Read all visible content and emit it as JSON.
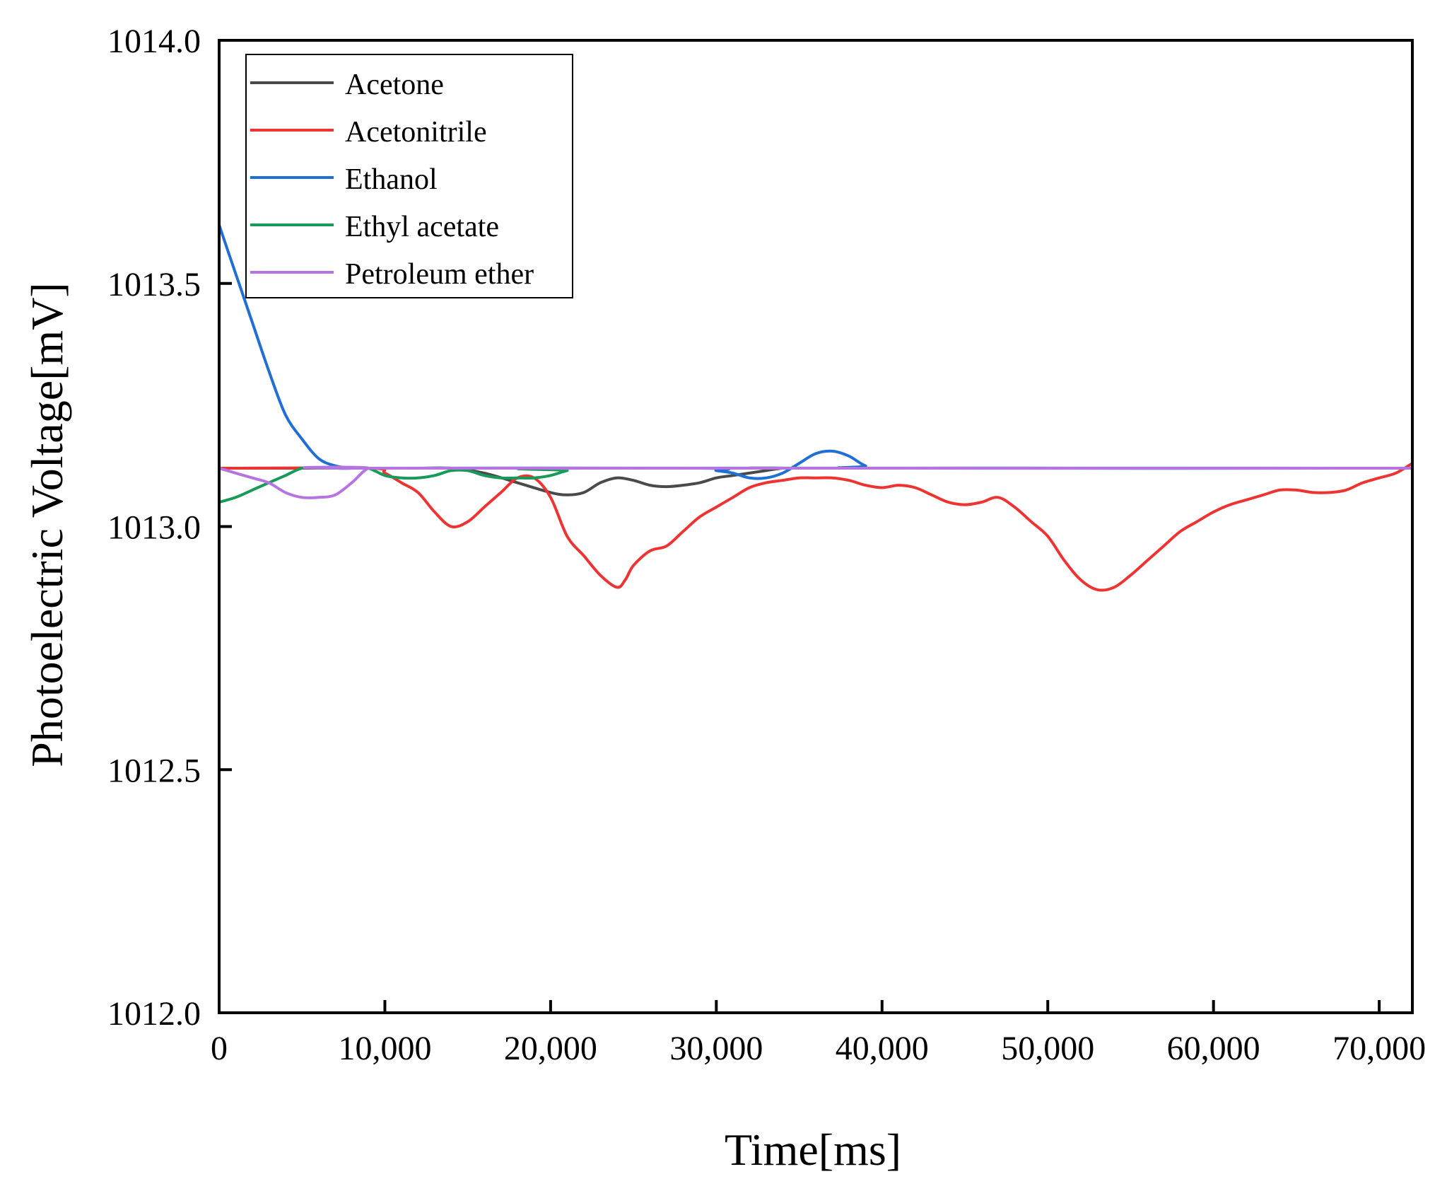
{
  "chart_data": {
    "type": "line",
    "title": "",
    "xlabel": "Time[ms]",
    "ylabel": "Photoelectric Voltage[mV]",
    "xlim": [
      0,
      72000
    ],
    "ylim": [
      1012.0,
      1014.0
    ],
    "x_ticks": [
      0,
      10000,
      20000,
      30000,
      40000,
      50000,
      60000,
      70000
    ],
    "x_tick_labels": [
      "0",
      "10,000",
      "20,000",
      "30,000",
      "40,000",
      "50,000",
      "60,000",
      "70,000"
    ],
    "y_ticks": [
      1012.0,
      1012.5,
      1013.0,
      1013.5,
      1014.0
    ],
    "y_tick_labels": [
      "1012.0",
      "1012.5",
      "1013.0",
      "1013.5",
      "1014.0"
    ],
    "grid": false,
    "legend_position": "top-left",
    "series": [
      {
        "name": "Acetone",
        "color": "#4a4a4a",
        "x": [
          0,
          9000,
          12000,
          14000,
          16000,
          18000,
          20000,
          21000,
          22000,
          23000,
          24000,
          25000,
          26000,
          27000,
          28000,
          29000,
          30000,
          31000,
          32000,
          33000,
          34000,
          35000,
          72000
        ],
        "y": [
          1013.12,
          1013.12,
          1013.12,
          1013.12,
          1013.11,
          1013.09,
          1013.07,
          1013.065,
          1013.07,
          1013.09,
          1013.1,
          1013.095,
          1013.085,
          1013.082,
          1013.085,
          1013.09,
          1013.1,
          1013.105,
          1013.11,
          1013.115,
          1013.12,
          1013.12,
          1013.12
        ]
      },
      {
        "name": "Acetonitrile",
        "color": "#ee3333",
        "x": [
          0,
          9000,
          10000,
          11000,
          12000,
          13000,
          14000,
          15000,
          16000,
          17000,
          18000,
          19000,
          20000,
          21000,
          22000,
          23000,
          24000,
          24500,
          25000,
          26000,
          27000,
          28000,
          29000,
          30000,
          31000,
          32000,
          33000,
          34000,
          35000,
          36000,
          37000,
          38000,
          39000,
          40000,
          41000,
          42000,
          43000,
          44000,
          45000,
          46000,
          47000,
          48000,
          49000,
          50000,
          51000,
          52000,
          53000,
          54000,
          55000,
          56000,
          57000,
          58000,
          59000,
          60000,
          61000,
          62000,
          63000,
          64000,
          65000,
          66000,
          67000,
          68000,
          69000,
          70000,
          71000,
          72000
        ],
        "y": [
          1013.12,
          1013.12,
          1013.11,
          1013.09,
          1013.07,
          1013.03,
          1013.0,
          1013.01,
          1013.04,
          1013.07,
          1013.1,
          1013.1,
          1013.06,
          1012.98,
          1012.94,
          1012.9,
          1012.875,
          1012.89,
          1012.92,
          1012.95,
          1012.96,
          1012.99,
          1013.02,
          1013.04,
          1013.06,
          1013.08,
          1013.09,
          1013.095,
          1013.1,
          1013.1,
          1013.1,
          1013.095,
          1013.085,
          1013.08,
          1013.085,
          1013.08,
          1013.065,
          1013.05,
          1013.045,
          1013.05,
          1013.06,
          1013.04,
          1013.01,
          1012.98,
          1012.93,
          1012.89,
          1012.87,
          1012.875,
          1012.9,
          1012.93,
          1012.96,
          1012.99,
          1013.01,
          1013.03,
          1013.045,
          1013.055,
          1013.065,
          1013.075,
          1013.075,
          1013.07,
          1013.07,
          1013.075,
          1013.09,
          1013.1,
          1013.11,
          1013.13
        ]
      },
      {
        "name": "Ethanol",
        "color": "#1f6fd4",
        "x": [
          0,
          1000,
          2000,
          3000,
          4000,
          5000,
          6000,
          7000,
          8000,
          9000,
          29000,
          30000,
          31000,
          32000,
          33000,
          34000,
          35000,
          36000,
          37000,
          38000,
          39000,
          40000,
          72000
        ],
        "y": [
          1013.62,
          1013.52,
          1013.42,
          1013.32,
          1013.23,
          1013.18,
          1013.14,
          1013.125,
          1013.12,
          1013.12,
          1013.12,
          1013.115,
          1013.11,
          1013.1,
          1013.1,
          1013.11,
          1013.13,
          1013.15,
          1013.155,
          1013.145,
          1013.125,
          1013.12,
          1013.12
        ]
      },
      {
        "name": "Ethyl acetate",
        "color": "#1a9a5a",
        "x": [
          0,
          1000,
          2000,
          3000,
          4000,
          5000,
          6000,
          7000,
          8000,
          9000,
          10000,
          11000,
          12000,
          13000,
          14000,
          15000,
          16000,
          17000,
          18000,
          19000,
          20000,
          21000,
          22000,
          72000
        ],
        "y": [
          1013.05,
          1013.06,
          1013.075,
          1013.09,
          1013.105,
          1013.12,
          1013.12,
          1013.12,
          1013.12,
          1013.12,
          1013.105,
          1013.1,
          1013.1,
          1013.105,
          1013.115,
          1013.115,
          1013.105,
          1013.1,
          1013.1,
          1013.1,
          1013.105,
          1013.115,
          1013.12,
          1013.12
        ]
      },
      {
        "name": "Petroleum ether",
        "color": "#b574e0",
        "x": [
          0,
          1000,
          2000,
          3000,
          4000,
          5000,
          6000,
          7000,
          8000,
          9000,
          10000,
          72000
        ],
        "y": [
          1013.12,
          1013.11,
          1013.1,
          1013.09,
          1013.07,
          1013.06,
          1013.06,
          1013.065,
          1013.09,
          1013.12,
          1013.12,
          1013.12
        ]
      }
    ]
  }
}
